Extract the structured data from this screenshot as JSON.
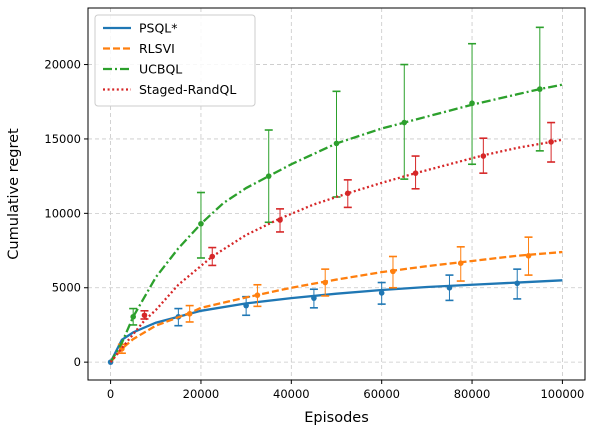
{
  "chart_data": {
    "type": "line",
    "title": "",
    "xlabel": "Episodes",
    "ylabel": "Cumulative regret",
    "xlim": [
      -5000,
      105000
    ],
    "ylim": [
      -1200,
      23800
    ],
    "xticks": [
      0,
      20000,
      40000,
      60000,
      80000,
      100000
    ],
    "yticks": [
      0,
      5000,
      10000,
      15000,
      20000
    ],
    "grid": true,
    "legend_position": "top-left",
    "series": [
      {
        "name": "PSQL*",
        "color": "#1f77b4",
        "dash": "solid",
        "curve": [
          [
            0,
            0
          ],
          [
            2500,
            1500
          ],
          [
            5000,
            2000
          ],
          [
            10000,
            2650
          ],
          [
            15000,
            3050
          ],
          [
            20000,
            3450
          ],
          [
            30000,
            3950
          ],
          [
            40000,
            4300
          ],
          [
            50000,
            4600
          ],
          [
            60000,
            4850
          ],
          [
            70000,
            5050
          ],
          [
            80000,
            5200
          ],
          [
            90000,
            5350
          ],
          [
            100000,
            5500
          ]
        ],
        "points": [
          {
            "x": 0,
            "y": 0,
            "low": 0,
            "high": 0
          },
          {
            "x": 15000,
            "y": 3050,
            "low": 2450,
            "high": 3600
          },
          {
            "x": 30000,
            "y": 3800,
            "low": 3150,
            "high": 4400
          },
          {
            "x": 45000,
            "y": 4300,
            "low": 3650,
            "high": 4900
          },
          {
            "x": 60000,
            "y": 4650,
            "low": 3900,
            "high": 5350
          },
          {
            "x": 75000,
            "y": 5000,
            "low": 4150,
            "high": 5850
          },
          {
            "x": 90000,
            "y": 5300,
            "low": 4250,
            "high": 6250
          }
        ]
      },
      {
        "name": "RLSVI",
        "color": "#ff7f0e",
        "dash": "dashed",
        "curve": [
          [
            0,
            0
          ],
          [
            2500,
            900
          ],
          [
            5000,
            1550
          ],
          [
            10000,
            2450
          ],
          [
            17500,
            3300
          ],
          [
            20000,
            3650
          ],
          [
            30000,
            4350
          ],
          [
            40000,
            5000
          ],
          [
            50000,
            5550
          ],
          [
            60000,
            6050
          ],
          [
            70000,
            6450
          ],
          [
            80000,
            6800
          ],
          [
            90000,
            7150
          ],
          [
            100000,
            7400
          ]
        ],
        "points": [
          {
            "x": 2500,
            "y": 900,
            "low": 600,
            "high": 1200
          },
          {
            "x": 17500,
            "y": 3250,
            "low": 2700,
            "high": 3800
          },
          {
            "x": 32500,
            "y": 4500,
            "low": 3750,
            "high": 5200
          },
          {
            "x": 47500,
            "y": 5350,
            "low": 4450,
            "high": 6250
          },
          {
            "x": 62500,
            "y": 6100,
            "low": 5000,
            "high": 7100
          },
          {
            "x": 77500,
            "y": 6650,
            "low": 5450,
            "high": 7750
          },
          {
            "x": 92500,
            "y": 7150,
            "low": 5850,
            "high": 8400
          }
        ]
      },
      {
        "name": "UCBQL",
        "color": "#2ca02c",
        "dash": "dashdot",
        "curve": [
          [
            0,
            0
          ],
          [
            2500,
            1300
          ],
          [
            5000,
            3050
          ],
          [
            10000,
            5700
          ],
          [
            15000,
            7650
          ],
          [
            20000,
            9300
          ],
          [
            25000,
            10700
          ],
          [
            30000,
            11700
          ],
          [
            35000,
            12500
          ],
          [
            40000,
            13300
          ],
          [
            50000,
            14700
          ],
          [
            60000,
            15700
          ],
          [
            65000,
            16100
          ],
          [
            70000,
            16500
          ],
          [
            80000,
            17300
          ],
          [
            90000,
            18000
          ],
          [
            95000,
            18350
          ],
          [
            100000,
            18650
          ]
        ],
        "points": [
          {
            "x": 5000,
            "y": 3050,
            "low": 2500,
            "high": 3600
          },
          {
            "x": 20000,
            "y": 9300,
            "low": 7000,
            "high": 11400
          },
          {
            "x": 35000,
            "y": 12500,
            "low": 9400,
            "high": 15600
          },
          {
            "x": 50000,
            "y": 14700,
            "low": 11100,
            "high": 18200
          },
          {
            "x": 65000,
            "y": 16100,
            "low": 12300,
            "high": 20000
          },
          {
            "x": 80000,
            "y": 17400,
            "low": 13300,
            "high": 21400
          },
          {
            "x": 95000,
            "y": 18350,
            "low": 14200,
            "high": 22500
          }
        ]
      },
      {
        "name": "Staged-RandQL",
        "color": "#d62728",
        "dash": "dotted",
        "curve": [
          [
            0,
            0
          ],
          [
            2500,
            950
          ],
          [
            7500,
            2800
          ],
          [
            10000,
            3500
          ],
          [
            15000,
            5200
          ],
          [
            22500,
            7100
          ],
          [
            30000,
            8550
          ],
          [
            37500,
            9650
          ],
          [
            45000,
            10600
          ],
          [
            52500,
            11350
          ],
          [
            60000,
            12050
          ],
          [
            67500,
            12700
          ],
          [
            75000,
            13300
          ],
          [
            82500,
            13900
          ],
          [
            90000,
            14400
          ],
          [
            97500,
            14800
          ],
          [
            100000,
            14950
          ]
        ],
        "points": [
          {
            "x": 7500,
            "y": 3150,
            "low": 2900,
            "high": 3450
          },
          {
            "x": 22500,
            "y": 7100,
            "low": 6500,
            "high": 7700
          },
          {
            "x": 37500,
            "y": 9550,
            "low": 8750,
            "high": 10300
          },
          {
            "x": 52500,
            "y": 11350,
            "low": 10400,
            "high": 12250
          },
          {
            "x": 67500,
            "y": 12700,
            "low": 11650,
            "high": 13850
          },
          {
            "x": 82500,
            "y": 13850,
            "low": 12700,
            "high": 15050
          },
          {
            "x": 97500,
            "y": 14800,
            "low": 13450,
            "high": 16100
          }
        ]
      }
    ]
  }
}
